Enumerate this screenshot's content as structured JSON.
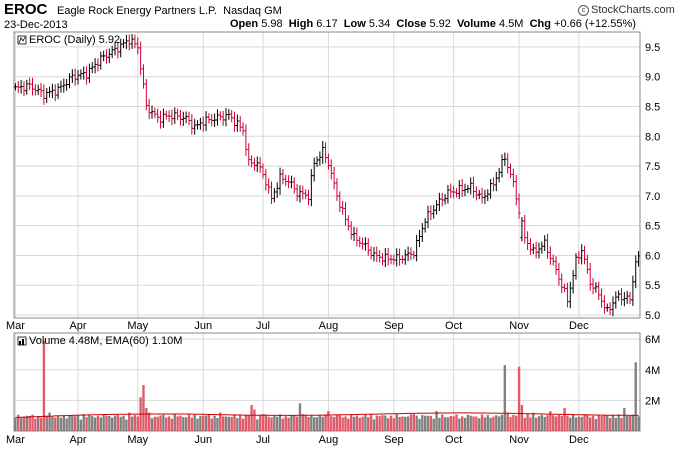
{
  "header": {
    "ticker": "EROC",
    "company": "Eagle Rock Energy Partners L.P.",
    "exchange": "Nasdaq GM",
    "date": "23-Dec-2013",
    "open_label": "Open",
    "open": "5.98",
    "high_label": "High",
    "high": "6.17",
    "low_label": "Low",
    "low": "5.34",
    "close_label": "Close",
    "close": "5.92",
    "volume_label": "Volume",
    "volume": "4.5M",
    "chg_label": "Chg",
    "chg": "+0.66 (+12.55%)",
    "brand": "StockCharts.com",
    "brand_icon": "copyright-icon"
  },
  "colors": {
    "up": "#000000",
    "down": "#cc0033",
    "vol_up": "#808080",
    "vol_down": "#e05a6a",
    "ema": "#cc0000",
    "grid": "#d8d8d8"
  },
  "chart_data": [
    {
      "type": "ohlc",
      "legend": "EROC (Daily) 5.92",
      "y_ticks": [
        "9.5",
        "9.0",
        "8.5",
        "8.0",
        "7.5",
        "7.0",
        "6.5",
        "6.0",
        "5.5",
        "5.0"
      ],
      "ylim": [
        4.95,
        9.75
      ],
      "x_labels": [
        "Mar",
        "Apr",
        "May",
        "Jun",
        "Jul",
        "Aug",
        "Sep",
        "Oct",
        "Nov",
        "Dec"
      ],
      "x_label_index": [
        0,
        22,
        43,
        66,
        87,
        110,
        133,
        154,
        177,
        198
      ],
      "num_days": 220,
      "anchors": [
        [
          0,
          8.8
        ],
        [
          5,
          8.85
        ],
        [
          10,
          8.7
        ],
        [
          15,
          8.78
        ],
        [
          20,
          9.0
        ],
        [
          25,
          9.05
        ],
        [
          30,
          9.3
        ],
        [
          35,
          9.45
        ],
        [
          40,
          9.62
        ],
        [
          43,
          9.5
        ],
        [
          46,
          8.5
        ],
        [
          50,
          8.3
        ],
        [
          55,
          8.35
        ],
        [
          60,
          8.3
        ],
        [
          63,
          8.15
        ],
        [
          66,
          8.25
        ],
        [
          70,
          8.3
        ],
        [
          75,
          8.35
        ],
        [
          80,
          8.1
        ],
        [
          82,
          7.55
        ],
        [
          85,
          7.55
        ],
        [
          88,
          7.25
        ],
        [
          90,
          6.95
        ],
        [
          93,
          7.3
        ],
        [
          96,
          7.25
        ],
        [
          99,
          7.05
        ],
        [
          103,
          7.0
        ],
        [
          105,
          7.55
        ],
        [
          108,
          7.75
        ],
        [
          110,
          7.55
        ],
        [
          113,
          7.0
        ],
        [
          116,
          6.6
        ],
        [
          119,
          6.3
        ],
        [
          122,
          6.2
        ],
        [
          126,
          6.0
        ],
        [
          130,
          5.95
        ],
        [
          135,
          5.95
        ],
        [
          140,
          6.05
        ],
        [
          144,
          6.6
        ],
        [
          148,
          6.85
        ],
        [
          152,
          7.05
        ],
        [
          156,
          7.1
        ],
        [
          160,
          7.15
        ],
        [
          164,
          6.95
        ],
        [
          168,
          7.2
        ],
        [
          172,
          7.65
        ],
        [
          175,
          7.2
        ],
        [
          179,
          6.3
        ],
        [
          182,
          6.05
        ],
        [
          186,
          6.2
        ],
        [
          190,
          5.75
        ],
        [
          194,
          5.25
        ],
        [
          197,
          5.9
        ],
        [
          199,
          6.1
        ],
        [
          202,
          5.55
        ],
        [
          205,
          5.35
        ],
        [
          208,
          5.05
        ],
        [
          211,
          5.3
        ],
        [
          214,
          5.3
        ],
        [
          216,
          5.25
        ],
        [
          218,
          5.92
        ]
      ],
      "gaps": [
        [
          178,
          6.3
        ]
      ]
    },
    {
      "type": "bar",
      "legend": "Volume 4.48M, EMA(60) 1.10M",
      "y_ticks": [
        "6M",
        "4M",
        "2M"
      ],
      "ylim": [
        0,
        6.4
      ],
      "ema60": 1.1,
      "base_volume": 0.7,
      "spikes": [
        [
          10,
          5.9
        ],
        [
          12,
          1.2
        ],
        [
          15,
          1.0
        ],
        [
          24,
          1.1
        ],
        [
          32,
          1.0
        ],
        [
          40,
          1.2
        ],
        [
          44,
          2.2
        ],
        [
          45,
          3.0
        ],
        [
          46,
          1.5
        ],
        [
          47,
          1.2
        ],
        [
          55,
          0.8
        ],
        [
          66,
          1.0
        ],
        [
          72,
          1.2
        ],
        [
          83,
          1.7
        ],
        [
          84,
          1.4
        ],
        [
          87,
          1.1
        ],
        [
          100,
          1.8
        ],
        [
          101,
          1.1
        ],
        [
          110,
          1.3
        ],
        [
          125,
          1.1
        ],
        [
          140,
          1.1
        ],
        [
          148,
          1.3
        ],
        [
          160,
          1.0
        ],
        [
          172,
          4.3
        ],
        [
          173,
          1.2
        ],
        [
          177,
          4.2
        ],
        [
          178,
          1.7
        ],
        [
          182,
          1.2
        ],
        [
          188,
          1.3
        ],
        [
          193,
          1.5
        ],
        [
          194,
          1.0
        ],
        [
          200,
          1.1
        ],
        [
          208,
          1.0
        ],
        [
          214,
          1.5
        ],
        [
          218,
          4.48
        ]
      ]
    }
  ]
}
